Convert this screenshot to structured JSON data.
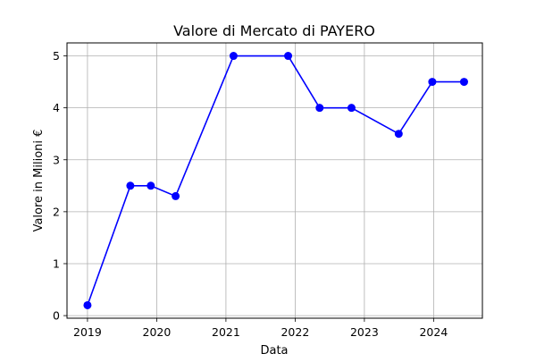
{
  "chart_data": {
    "type": "line",
    "title": "Valore di Mercato di PAYERO",
    "xlabel": "Data",
    "ylabel": "Valore in Milioni €",
    "x_tick_labels": [
      "2019",
      "2020",
      "2021",
      "2022",
      "2023",
      "2024"
    ],
    "y_tick_labels": [
      "0",
      "1",
      "2",
      "3",
      "4",
      "5"
    ],
    "xlim": [
      "2018-09-15",
      "2024-09-15"
    ],
    "ylim": [
      -0.05,
      5.25
    ],
    "grid": true,
    "series": [
      {
        "color": "#0000ff",
        "marker": "circle",
        "points": [
          {
            "x": "2019-01-01",
            "y": 0.2
          },
          {
            "x": "2019-08-15",
            "y": 2.5
          },
          {
            "x": "2019-12-01",
            "y": 2.5
          },
          {
            "x": "2020-04-10",
            "y": 2.3
          },
          {
            "x": "2021-02-10",
            "y": 5.0
          },
          {
            "x": "2021-11-25",
            "y": 5.0
          },
          {
            "x": "2022-05-10",
            "y": 4.0
          },
          {
            "x": "2022-10-25",
            "y": 4.0
          },
          {
            "x": "2023-07-01",
            "y": 3.5
          },
          {
            "x": "2023-12-25",
            "y": 4.5
          },
          {
            "x": "2024-06-10",
            "y": 4.5
          }
        ]
      }
    ]
  }
}
